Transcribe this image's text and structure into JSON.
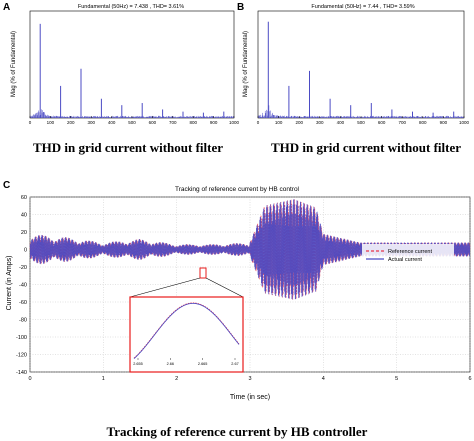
{
  "colors": {
    "bars": "#4b4bc4",
    "reference": "#e8344a",
    "actual": "#4b4bc4",
    "zoom_box": "#e81c1c",
    "axis": "#000000"
  },
  "panels": {
    "A": {
      "letter": "A",
      "title": "Fundamental (50Hz) = 7.438 , THD= 3.61%",
      "ylabel": "Mag (% of Fundamental)",
      "caption": "THD in grid current without filter"
    },
    "B": {
      "letter": "B",
      "title": "Fundamental (50Hz) = 7.44 , THD= 3.59%",
      "ylabel": "Mag (% of Fundamental)",
      "caption": "THD in grid current without filter"
    },
    "C": {
      "letter": "C",
      "title": "Tracking of reference current by HB control",
      "ylabel": "Current (in Amps)",
      "xlabel": "Time (in sec)",
      "caption": "Tracking of reference current by HB controller"
    }
  },
  "chart_data": [
    {
      "id": "A",
      "type": "bar",
      "title": "Fundamental (50Hz) = 7.438 , THD= 3.61%",
      "xlabel": "",
      "ylabel": "Mag (% of Fundamental)",
      "x_ticks": [
        "0",
        "100",
        "200",
        "300",
        "400",
        "500",
        "600",
        "700",
        "800",
        "900",
        "1000"
      ],
      "xlim": [
        0,
        1000
      ],
      "ylim": [
        0,
        100
      ],
      "peaks": [
        {
          "x": 50,
          "y": 88
        },
        {
          "x": 150,
          "y": 30
        },
        {
          "x": 250,
          "y": 46
        },
        {
          "x": 350,
          "y": 18
        },
        {
          "x": 450,
          "y": 12
        },
        {
          "x": 550,
          "y": 14
        },
        {
          "x": 650,
          "y": 8
        },
        {
          "x": 750,
          "y": 6
        },
        {
          "x": 850,
          "y": 5
        },
        {
          "x": 950,
          "y": 6
        }
      ]
    },
    {
      "id": "B",
      "type": "bar",
      "title": "Fundamental (50Hz) = 7.44 , THD= 3.59%",
      "xlabel": "",
      "ylabel": "Mag (% of Fundamental)",
      "x_ticks": [
        "0",
        "100",
        "200",
        "300",
        "400",
        "500",
        "600",
        "700",
        "800",
        "900",
        "1000"
      ],
      "xlim": [
        0,
        1000
      ],
      "ylim": [
        0,
        100
      ],
      "peaks": [
        {
          "x": 50,
          "y": 90
        },
        {
          "x": 150,
          "y": 30
        },
        {
          "x": 250,
          "y": 44
        },
        {
          "x": 350,
          "y": 18
        },
        {
          "x": 450,
          "y": 12
        },
        {
          "x": 550,
          "y": 14
        },
        {
          "x": 650,
          "y": 8
        },
        {
          "x": 750,
          "y": 6
        },
        {
          "x": 850,
          "y": 5
        },
        {
          "x": 950,
          "y": 6
        }
      ]
    },
    {
      "id": "C",
      "type": "line",
      "title": "Tracking of reference current by HB control",
      "xlabel": "Time (in sec)",
      "ylabel": "Current (in Amps)",
      "xlim": [
        0,
        6
      ],
      "ylim": [
        -140,
        60
      ],
      "x_ticks": [
        "0",
        "1",
        "2",
        "3",
        "4",
        "5",
        "6"
      ],
      "y_ticks": [
        "60",
        "40",
        "20",
        "0",
        "-20",
        "-40",
        "-60",
        "-80",
        "-100",
        "-120",
        "-140"
      ],
      "legend": {
        "position": "right",
        "entries": [
          "Reference current",
          "Actual current"
        ]
      },
      "series": [
        {
          "name": "Reference current",
          "style": "dashed",
          "envelope": [
            [
              0,
              18
            ],
            [
              0.5,
              14
            ],
            [
              1,
              8
            ],
            [
              1.5,
              12
            ],
            [
              2,
              6
            ],
            [
              2.5,
              6
            ],
            [
              3,
              8
            ],
            [
              3.2,
              50
            ],
            [
              3.6,
              58
            ],
            [
              3.9,
              48
            ],
            [
              4.0,
              18
            ],
            [
              4.5,
              8
            ],
            [
              5,
              8
            ],
            [
              6,
              8
            ]
          ]
        },
        {
          "name": "Actual current",
          "style": "solid",
          "envelope": [
            [
              0,
              18
            ],
            [
              0.5,
              14
            ],
            [
              1,
              8
            ],
            [
              1.5,
              12
            ],
            [
              2,
              6
            ],
            [
              2.5,
              6
            ],
            [
              3,
              8
            ],
            [
              3.2,
              50
            ],
            [
              3.6,
              58
            ],
            [
              3.9,
              48
            ],
            [
              4.0,
              18
            ],
            [
              4.5,
              8
            ],
            [
              5,
              8
            ],
            [
              6,
              8
            ]
          ]
        }
      ],
      "inset": {
        "x_ticks": [
          "2.655",
          "2.66",
          "2.665",
          "2.67"
        ],
        "xlim": [
          2.655,
          2.67
        ]
      }
    }
  ]
}
